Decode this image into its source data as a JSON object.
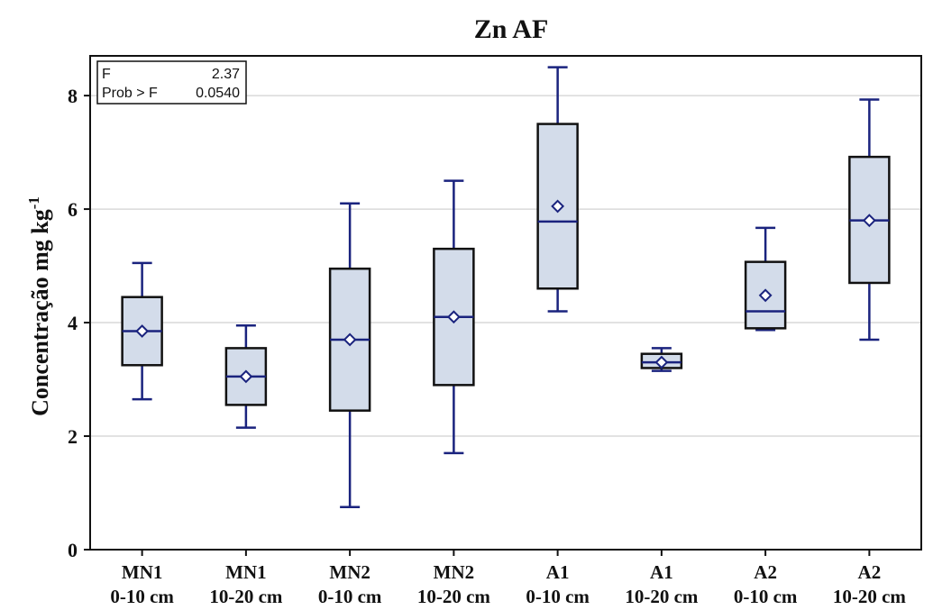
{
  "chart_data": {
    "type": "box",
    "title": "Zn AF",
    "ylabel": "Concentração mg kg",
    "ylabel_sup": "-1",
    "xlabel": "",
    "ylim": [
      0,
      8.7
    ],
    "yticks": [
      0,
      2,
      4,
      6,
      8
    ],
    "grid": "horizontal",
    "stats": {
      "f_label": "F",
      "f_value": "2.37",
      "p_label": "Prob > F",
      "p_value": "0.0540"
    },
    "categories": [
      {
        "line1": "MN1",
        "line2": "0-10 cm"
      },
      {
        "line1": "MN1",
        "line2": "10-20 cm"
      },
      {
        "line1": "MN2",
        "line2": "0-10 cm"
      },
      {
        "line1": "MN2",
        "line2": "10-20 cm"
      },
      {
        "line1": "A1",
        "line2": "0-10 cm"
      },
      {
        "line1": "A1",
        "line2": "10-20 cm"
      },
      {
        "line1": "A2",
        "line2": "0-10 cm"
      },
      {
        "line1": "A2",
        "line2": "10-20 cm"
      }
    ],
    "boxes": [
      {
        "min": 2.65,
        "q1": 3.25,
        "median": 3.85,
        "q3": 4.45,
        "max": 5.05,
        "mean": 3.85
      },
      {
        "min": 2.15,
        "q1": 2.55,
        "median": 3.05,
        "q3": 3.55,
        "max": 3.95,
        "mean": 3.05
      },
      {
        "min": 0.75,
        "q1": 2.45,
        "median": 3.7,
        "q3": 4.95,
        "max": 6.1,
        "mean": 3.7
      },
      {
        "min": 1.7,
        "q1": 2.9,
        "median": 4.1,
        "q3": 5.3,
        "max": 6.5,
        "mean": 4.1
      },
      {
        "min": 4.2,
        "q1": 4.6,
        "median": 5.78,
        "q3": 7.5,
        "max": 8.5,
        "mean": 6.05
      },
      {
        "min": 3.15,
        "q1": 3.2,
        "median": 3.3,
        "q3": 3.45,
        "max": 3.55,
        "mean": 3.3
      },
      {
        "min": 3.87,
        "q1": 3.9,
        "median": 4.2,
        "q3": 5.07,
        "max": 5.67,
        "mean": 4.48
      },
      {
        "min": 3.7,
        "q1": 4.7,
        "median": 5.8,
        "q3": 6.92,
        "max": 7.93,
        "mean": 5.8
      }
    ],
    "colors": {
      "box_fill": "#d3dcea",
      "box_stroke": "#111111",
      "whisker": "#1a237e",
      "median": "#1a237e",
      "mean_marker": "#1a237e",
      "grid": "#d9d9d9"
    }
  }
}
